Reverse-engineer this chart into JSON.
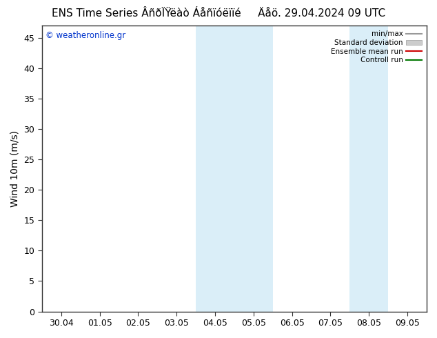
{
  "title_left": "ENS Time Series ÂñðÏŸëàò Áåñïóëïïé",
  "title_right": "Äåö. 29.04.2024 09 UTC",
  "ylabel": "Wind 10m (m/s)",
  "ylim": [
    0,
    47
  ],
  "yticks": [
    0,
    5,
    10,
    15,
    20,
    25,
    30,
    35,
    40,
    45
  ],
  "xtick_labels": [
    "30.04",
    "01.05",
    "02.05",
    "03.05",
    "04.05",
    "05.05",
    "06.05",
    "07.05",
    "08.05",
    "09.05"
  ],
  "copyright": "© weatheronline.gr",
  "legend_labels": [
    "min/max",
    "Standard deviation",
    "Ensemble mean run",
    "Controll run"
  ],
  "shade_bands": [
    {
      "xstart": 4,
      "xend": 6
    },
    {
      "xstart": 8,
      "xend": 9
    }
  ],
  "shade_color": "#daeef8",
  "bg_color": "#ffffff",
  "title_fontsize": 11,
  "tick_fontsize": 9,
  "ylabel_fontsize": 10
}
